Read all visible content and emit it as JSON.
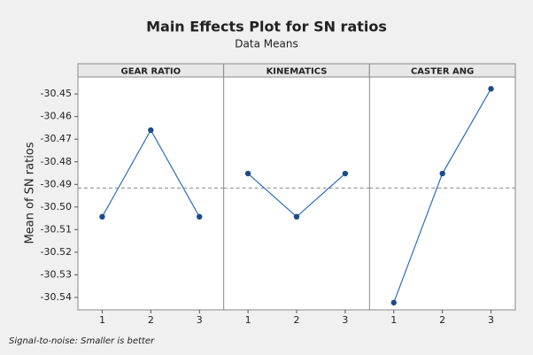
{
  "chart_data": {
    "type": "line",
    "title": "Main Effects Plot for SN ratios",
    "subtitle": "Data Means",
    "y_label": "Mean of SN ratios",
    "footnote": "Signal-to-noise: Smaller is better",
    "ylim": [
      -30.5455,
      -30.4425
    ],
    "yticks": [
      -30.45,
      -30.46,
      -30.47,
      -30.48,
      -30.49,
      {
        "value": -30.5,
        "label": "-30.50"
      },
      -30.51,
      -30.52,
      -30.53,
      -30.54
    ],
    "reference_line": -30.4916,
    "color": "#2f6eb5",
    "panels": [
      {
        "name": "GEAR RATIO",
        "categories": [
          "1",
          "2",
          "3"
        ],
        "values": [
          -30.5043,
          -30.466,
          -30.5043
        ]
      },
      {
        "name": "KINEMATICS",
        "categories": [
          "1",
          "2",
          "3"
        ],
        "values": [
          -30.4852,
          -30.5043,
          -30.4852
        ]
      },
      {
        "name": "CASTER ANG",
        "categories": [
          "1",
          "2",
          "3"
        ],
        "values": [
          -30.5423,
          -30.4852,
          -30.4477
        ]
      }
    ]
  }
}
